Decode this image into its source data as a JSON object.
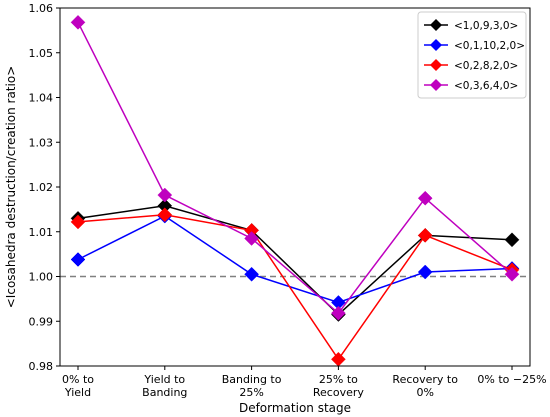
{
  "chart_data": {
    "type": "line",
    "title": "",
    "xlabel": "Deformation stage",
    "ylabel": "<Icosahedra destruction/creation ratio>",
    "categories": [
      "0% to\nYield",
      "Yield to\nBanding",
      "Banding to\n25%",
      "25% to\nRecovery",
      "Recovery to\n0%",
      "0% to −25%"
    ],
    "ylim": [
      0.98,
      1.06
    ],
    "yticks": [
      "0.98",
      "0.99",
      "1.00",
      "1.01",
      "1.02",
      "1.03",
      "1.04",
      "1.05",
      "1.06"
    ],
    "reference_line": {
      "y": 1.0,
      "style": "dashed",
      "color": "#808080"
    },
    "grid": false,
    "legend_position": "top-right",
    "series": [
      {
        "name": "<1,0,9,3,0>",
        "color": "#000000",
        "values": [
          1.013,
          1.0158,
          1.0103,
          0.9915,
          1.0092,
          1.0082
        ]
      },
      {
        "name": "<0,1,10,2,0>",
        "color": "#0000ff",
        "values": [
          1.0038,
          1.0135,
          1.0005,
          0.9942,
          1.001,
          1.0018
        ]
      },
      {
        "name": "<0,2,8,2,0>",
        "color": "#ff0000",
        "values": [
          1.0122,
          1.0138,
          1.0103,
          0.9815,
          1.0092,
          1.0015
        ]
      },
      {
        "name": "<0,3,6,4,0>",
        "color": "#bf00bf",
        "values": [
          1.0568,
          1.0182,
          1.0085,
          0.9918,
          1.0175,
          1.0005
        ]
      }
    ]
  }
}
